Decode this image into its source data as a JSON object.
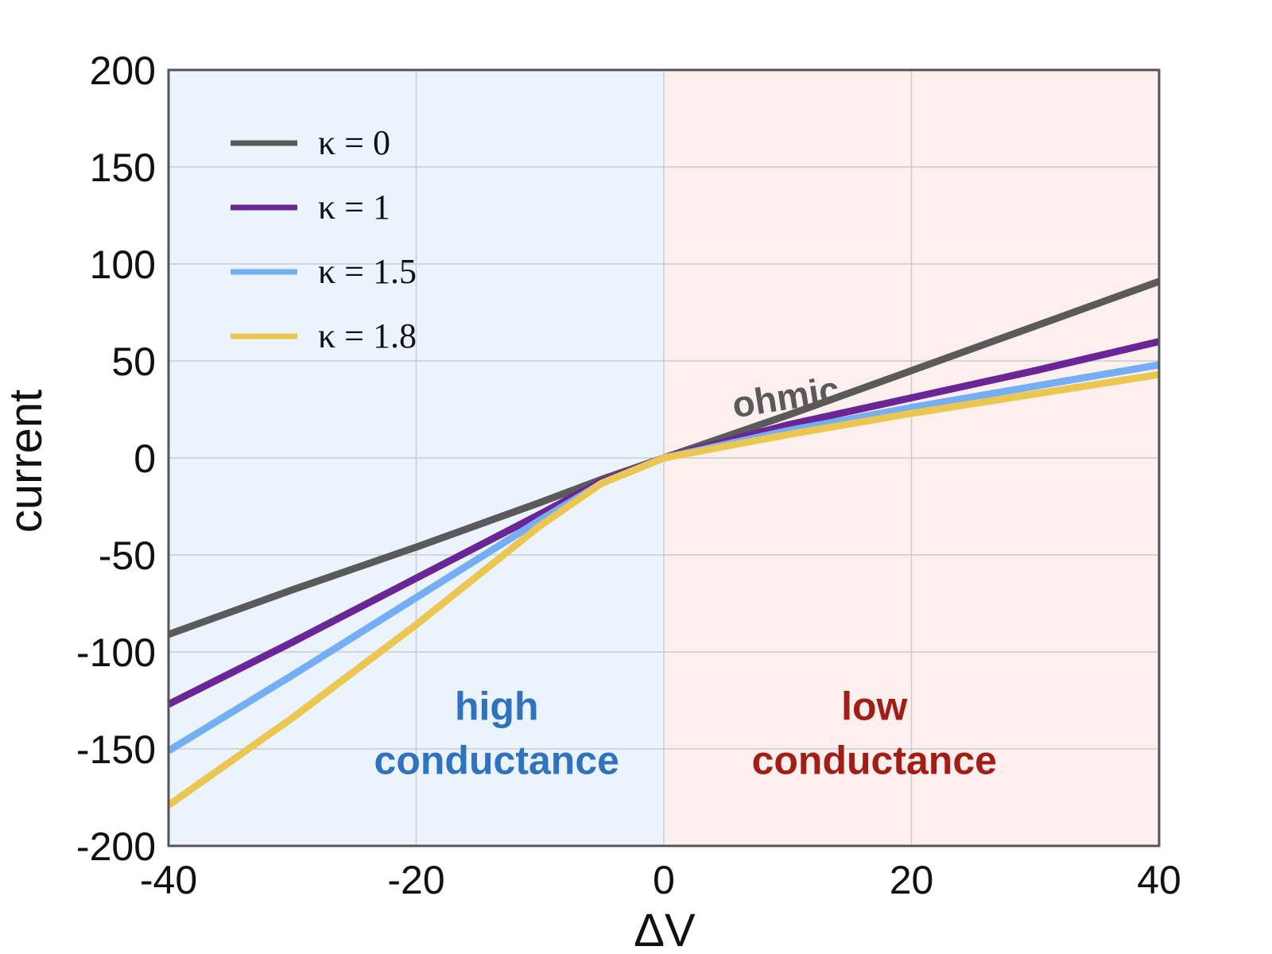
{
  "chart_data": {
    "type": "line",
    "xlabel": "ΔV",
    "ylabel": "current",
    "xlim": [
      -40,
      40
    ],
    "ylim": [
      -200,
      200
    ],
    "xticks": [
      -40,
      -20,
      0,
      20,
      40
    ],
    "yticks": [
      -200,
      -150,
      -100,
      -50,
      0,
      50,
      100,
      150,
      200
    ],
    "grid": true,
    "legend_position": "top-left",
    "regions": [
      {
        "x0": -40,
        "x1": 0,
        "color": "#ebf3fc"
      },
      {
        "x0": 0,
        "x1": 40,
        "color": "#fdefee"
      }
    ],
    "series": [
      {
        "name": "κ = 0",
        "color": "#5a5a5a",
        "x": [
          -40,
          -30,
          -20,
          -10,
          -5,
          0,
          10,
          20,
          30,
          40
        ],
        "y": [
          -91,
          -68,
          -46,
          -23,
          -11,
          0,
          22,
          45,
          68,
          91
        ]
      },
      {
        "name": "κ = 1",
        "color": "#6a2596",
        "x": [
          -40,
          -30,
          -20,
          -10,
          -5,
          0,
          10,
          20,
          30,
          40
        ],
        "y": [
          -127,
          -95,
          -62,
          -29,
          -12,
          0,
          17,
          31,
          45,
          60
        ]
      },
      {
        "name": "κ = 1.5",
        "color": "#74aef5",
        "x": [
          -40,
          -30,
          -20,
          -10,
          -5,
          0,
          10,
          20,
          30,
          40
        ],
        "y": [
          -151,
          -112,
          -72,
          -32,
          -13,
          0,
          14,
          26,
          37,
          48
        ]
      },
      {
        "name": "κ = 1.8",
        "color": "#ebc752",
        "x": [
          -40,
          -30,
          -20,
          -10,
          -5,
          0,
          10,
          20,
          30,
          40
        ],
        "y": [
          -179,
          -134,
          -86,
          -35,
          -13,
          0,
          12,
          23,
          33,
          43
        ]
      }
    ],
    "annotations": [
      {
        "text": "ohmic",
        "x": 10,
        "y": 25,
        "color": "#5a5a5a"
      },
      {
        "text": "high",
        "x": -13.5,
        "y": -135,
        "color": "#2f72c0"
      },
      {
        "text": "conductance",
        "x": -13.5,
        "y": -163,
        "color": "#2f72c0"
      },
      {
        "text": "low",
        "x": 17,
        "y": -135,
        "color": "#a11d15"
      },
      {
        "text": "conductance",
        "x": 17,
        "y": -163,
        "color": "#a11d15"
      }
    ]
  }
}
